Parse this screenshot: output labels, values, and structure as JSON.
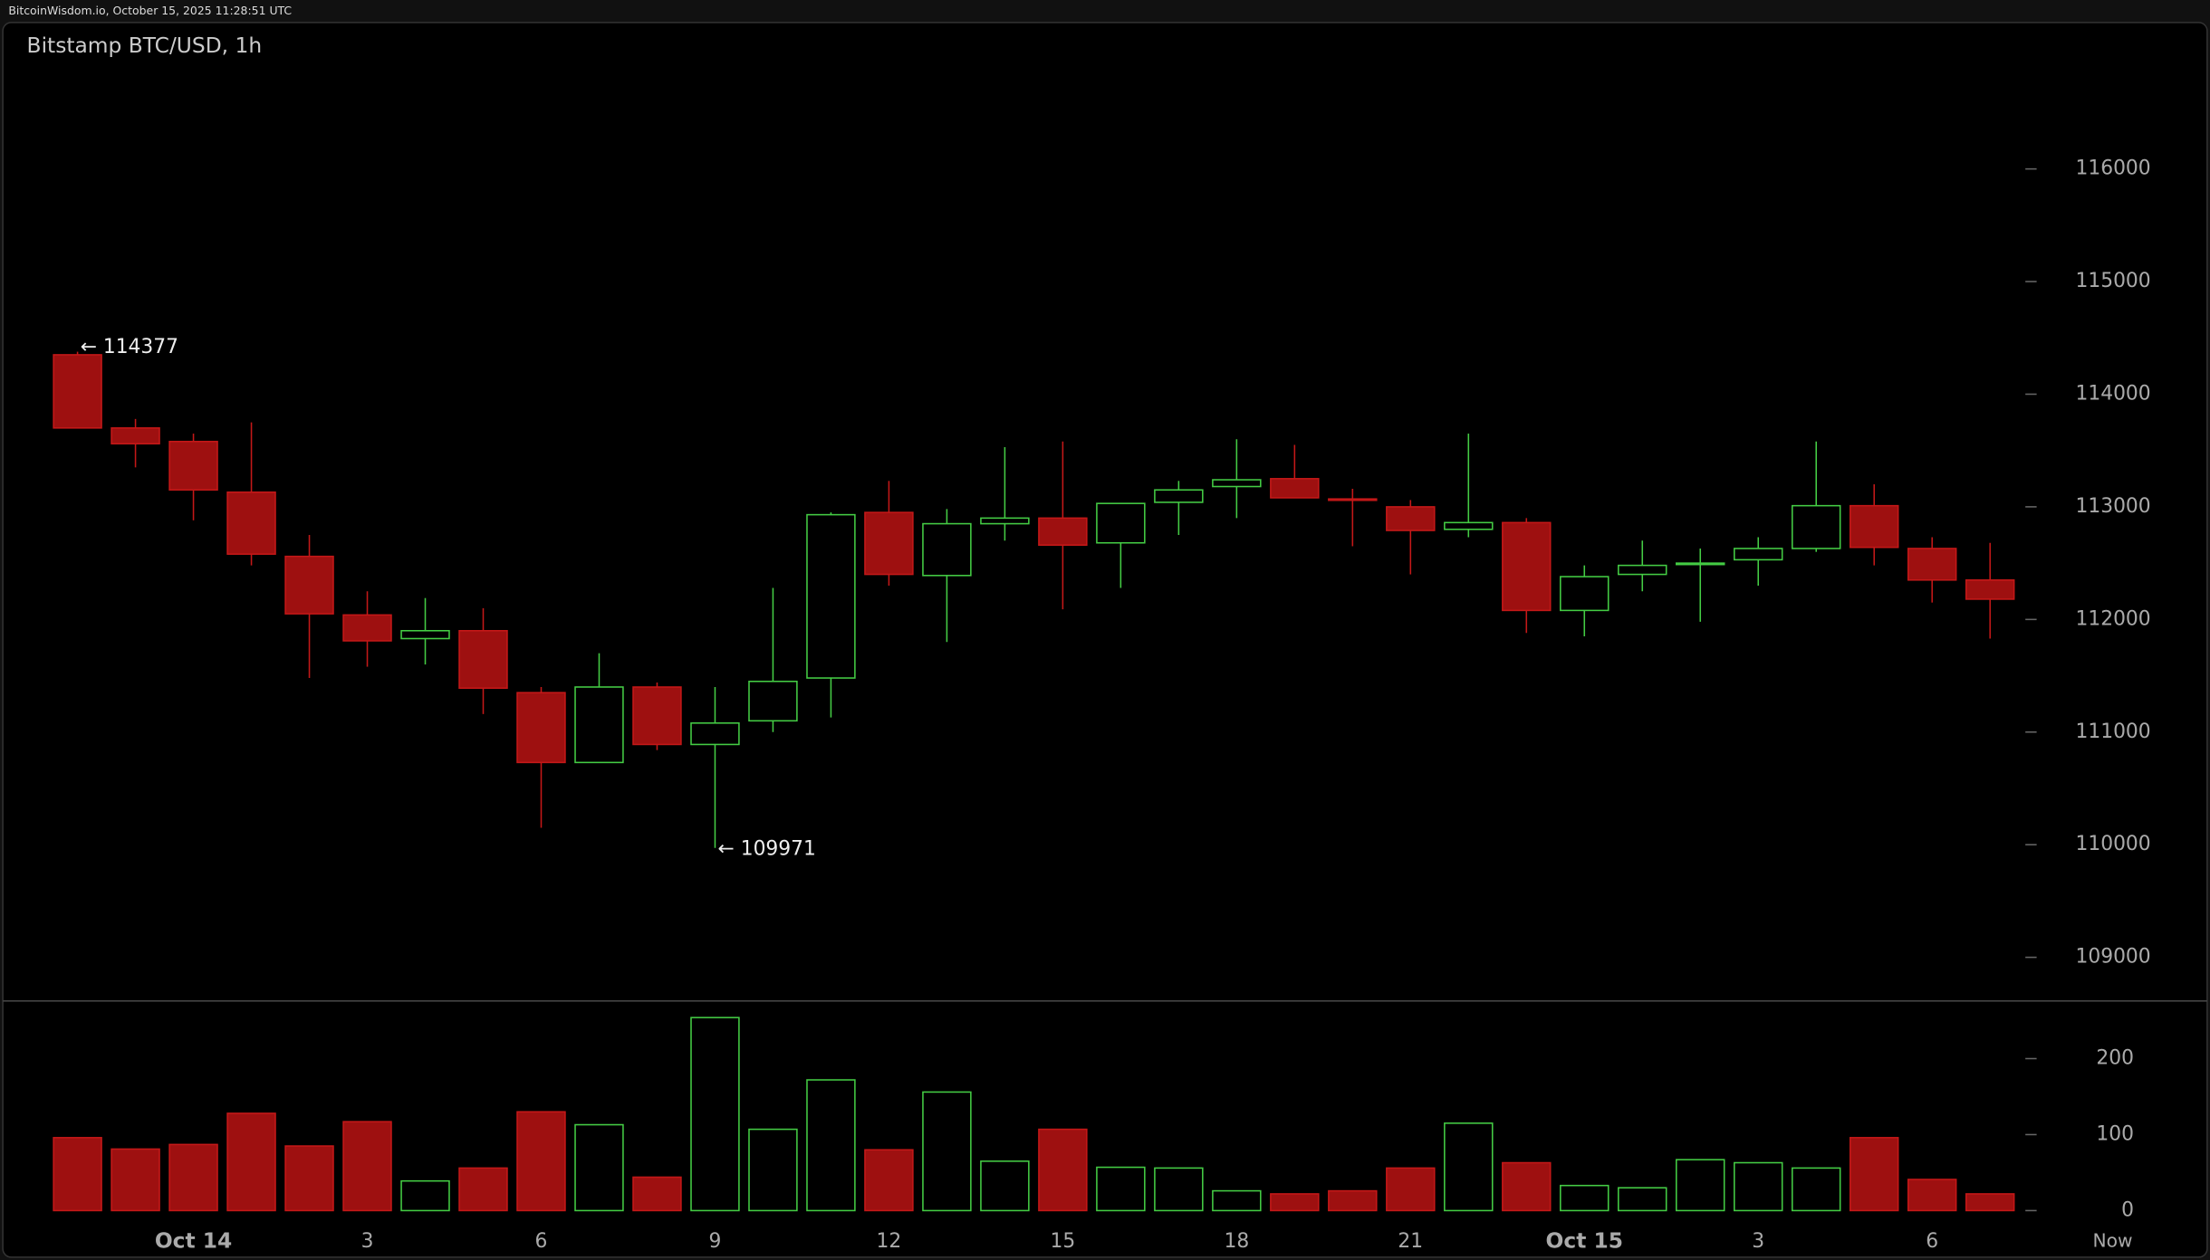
{
  "header": {
    "text": "BitcoinWisdom.io, October 15, 2025 11:28:51 UTC"
  },
  "chart_data": {
    "type": "candlestick",
    "title": "Bitstamp BTC/USD, 1h",
    "categories": [
      null,
      null,
      "Oct 14",
      null,
      null,
      "3",
      null,
      null,
      "6",
      null,
      null,
      "9",
      null,
      null,
      "12",
      null,
      null,
      "15",
      null,
      null,
      "18",
      null,
      null,
      "21",
      null,
      null,
      "Oct 15",
      null,
      null,
      "3",
      null,
      null,
      "6",
      null
    ],
    "now_label": "Now",
    "open": [
      114350,
      113700,
      113580,
      113130,
      112560,
      112040,
      111830,
      111900,
      111350,
      110730,
      111400,
      110890,
      111100,
      111480,
      112950,
      112390,
      112850,
      112900,
      112680,
      113040,
      113180,
      113250,
      113070,
      113000,
      112800,
      112860,
      112080,
      112400,
      112490,
      112530,
      112630,
      113010,
      112630,
      112350
    ],
    "high": [
      114377,
      113780,
      113650,
      113750,
      112750,
      112250,
      112190,
      112100,
      111400,
      111700,
      111440,
      111400,
      112280,
      112950,
      113230,
      112980,
      113530,
      113580,
      113030,
      113230,
      113600,
      113550,
      113160,
      113060,
      113650,
      112900,
      112480,
      112700,
      112630,
      112730,
      113580,
      113200,
      112730,
      112680
    ],
    "low": [
      113700,
      113350,
      112880,
      112480,
      111480,
      111580,
      111600,
      111160,
      110150,
      110730,
      110840,
      109971,
      111000,
      111130,
      112300,
      111800,
      112700,
      112090,
      112280,
      112750,
      112900,
      113080,
      112650,
      112400,
      112730,
      111880,
      111850,
      112250,
      111980,
      112300,
      112600,
      112480,
      112150,
      111830
    ],
    "close": [
      113700,
      113560,
      113150,
      112580,
      112050,
      111810,
      111900,
      111390,
      110730,
      111400,
      110890,
      111080,
      111450,
      112930,
      112400,
      112850,
      112900,
      112660,
      113030,
      113150,
      113240,
      113080,
      113060,
      112790,
      112860,
      112080,
      112380,
      112480,
      112500,
      112630,
      113010,
      112640,
      112350,
      112180
    ],
    "volume": [
      96,
      81,
      87,
      128,
      85,
      117,
      39,
      56,
      130,
      113,
      44,
      254,
      107,
      172,
      80,
      156,
      65,
      107,
      57,
      56,
      26,
      22,
      26,
      56,
      115,
      63,
      33,
      30,
      67,
      63,
      56,
      96,
      41,
      22
    ],
    "up_color": "#44cc44",
    "down_color": "#9e1010",
    "ylim": [
      108625,
      117000
    ],
    "yticks": [
      109000,
      110000,
      111000,
      112000,
      113000,
      114000,
      115000,
      116000
    ],
    "volume_ylim": [
      -15,
      274
    ],
    "volume_yticks": [
      0,
      100,
      200
    ],
    "annotations": [
      {
        "text": "← 114377",
        "value": 114377
      },
      {
        "text": "← 109971",
        "value": 109971
      }
    ]
  }
}
